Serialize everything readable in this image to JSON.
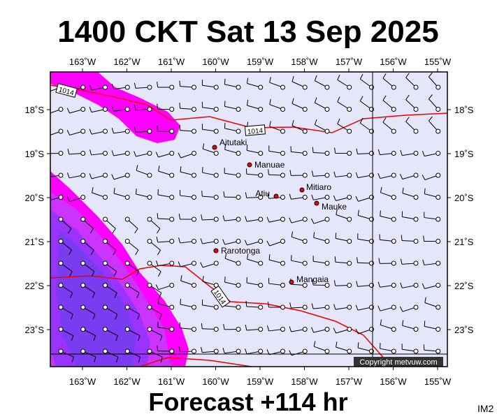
{
  "header": {
    "title": "1400 CKT Sat 13 Sep 2025"
  },
  "footer": {
    "forecast": "Forecast +114 hr",
    "code": "IM2"
  },
  "map": {
    "lon_labels": [
      "163˚W",
      "162˚W",
      "161˚W",
      "160˚W",
      "159˚W",
      "158˚W",
      "157˚W",
      "156˚W",
      "155˚W"
    ],
    "lat_labels": [
      "18˚S",
      "19˚S",
      "20˚S",
      "21˚S",
      "22˚S",
      "23˚S"
    ],
    "places": [
      "Aitutaki",
      "Manuae",
      "Atiu",
      "Mitiaro",
      "Mauke",
      "Rarotonga",
      "Mangaia"
    ],
    "isobar_labels": [
      "1014",
      "1014",
      "1014"
    ],
    "copyright": "Copyright metvuw.com"
  }
}
